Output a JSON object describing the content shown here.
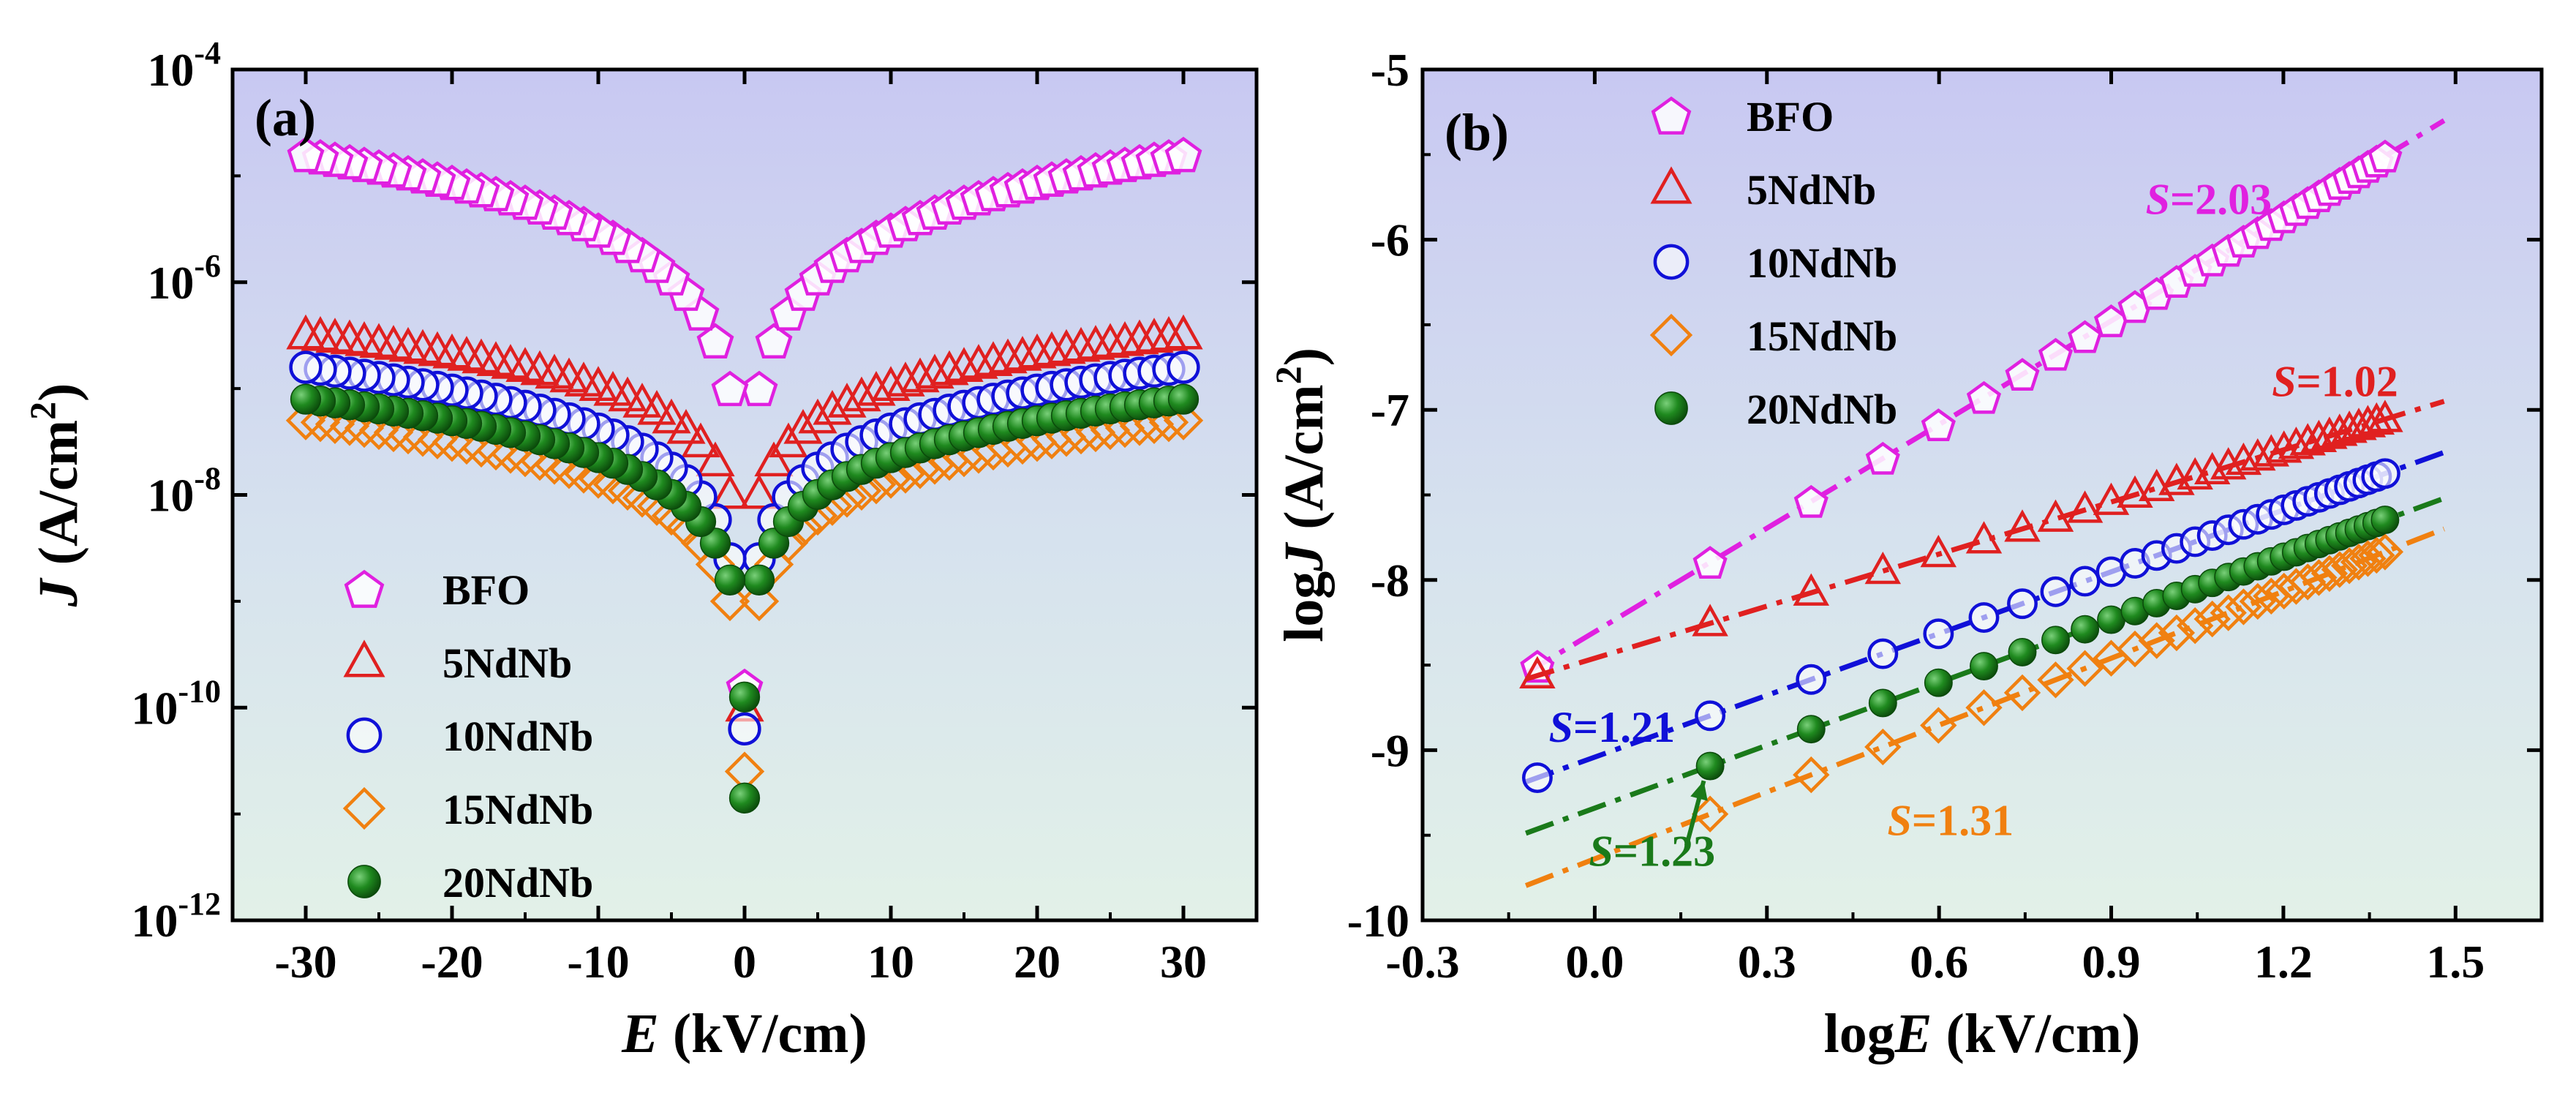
{
  "chart_data": [
    {
      "panel": "(a)",
      "type": "scatter",
      "xlabel_var": "E",
      "xlabel_unit": " (kV/cm)",
      "ylabel_var": "J",
      "ylabel_unit": " (A/cm",
      "ylabel_sup": "2",
      "ylabel_close": ")",
      "xlim": [
        -35,
        35
      ],
      "yscale": "log",
      "ylim_exp": [
        -12,
        -4
      ],
      "xticks": [
        -30,
        -20,
        -10,
        0,
        10,
        20,
        30
      ],
      "xtick_labels": [
        "-30",
        "-20",
        "-10",
        "0",
        "10",
        "20",
        "30"
      ],
      "ytick_exps": [
        -12,
        -10,
        -8,
        -6,
        -4
      ],
      "ytick_base": "10",
      "ytick_sups": [
        "-12",
        "-10",
        "-8",
        "-6",
        "-4"
      ],
      "legend": "lower-left",
      "series": [
        {
          "name": "BFO",
          "color": "#e020e0",
          "marker": "pentagon",
          "logJ_at_30": -4.8,
          "logJ_near_1": -7.0,
          "logJ_at_0": -9.8
        },
        {
          "name": "5NdNb",
          "color": "#e02020",
          "marker": "triangle",
          "logJ_at_30": -6.5,
          "logJ_near_1": -8.0,
          "logJ_at_0": -10.0
        },
        {
          "name": "10NdNb",
          "color": "#1010d8",
          "marker": "circle",
          "logJ_at_30": -6.8,
          "logJ_near_1": -8.6,
          "logJ_at_0": -10.2
        },
        {
          "name": "15NdNb",
          "color": "#f08010",
          "marker": "diamond",
          "logJ_at_30": -7.3,
          "logJ_near_1": -9.0,
          "logJ_at_0": -10.6
        },
        {
          "name": "20NdNb",
          "color": "#1a7a1a",
          "marker": "filled-circle",
          "logJ_at_30": -7.1,
          "logJ_near_1": -8.8,
          "logJ_at_0": -9.9
        }
      ]
    },
    {
      "panel": "(b)",
      "type": "scatter",
      "xlabel_pre": "log",
      "xlabel_var": "E",
      "xlabel_unit": " (kV/cm)",
      "ylabel_pre": "log",
      "ylabel_var": "J",
      "ylabel_unit": " (A/cm",
      "ylabel_sup": "2",
      "ylabel_close": ")",
      "xlim": [
        -0.3,
        1.65
      ],
      "ylim": [
        -10,
        -5
      ],
      "xticks": [
        -0.3,
        0.0,
        0.3,
        0.6,
        0.9,
        1.2,
        1.5
      ],
      "xtick_labels": [
        "-0.3",
        "0.0",
        "0.3",
        "0.6",
        "0.9",
        "1.2",
        "1.5"
      ],
      "yticks": [
        -10,
        -9,
        -8,
        -7,
        -6,
        -5
      ],
      "ytick_labels": [
        "-10",
        "-9",
        "-8",
        "-7",
        "-6",
        "-5"
      ],
      "legend": "top-left",
      "fit_start_x": -0.12,
      "fit_end_x": 1.48,
      "series": [
        {
          "name": "BFO",
          "color": "#e020e0",
          "marker": "pentagon",
          "slope": 2.03,
          "y_end": -5.3,
          "fit_label_S": "S",
          "fit_label": "=2.03",
          "label_x": 0.96,
          "label_y": -5.85
        },
        {
          "name": "5NdNb",
          "color": "#e02020",
          "marker": "triangle",
          "slope": 1.02,
          "y_end": -6.95,
          "fit_label_S": "S",
          "fit_label": "=1.02",
          "label_x": 1.18,
          "label_y": -6.92
        },
        {
          "name": "10NdNb",
          "color": "#1010d8",
          "marker": "circle",
          "slope": 1.21,
          "y_end": -7.25,
          "fit_label_S": "S",
          "fit_label": "=1.21",
          "label_x": -0.08,
          "label_y": -8.95
        },
        {
          "name": "15NdNb",
          "color": "#f08010",
          "marker": "diamond",
          "slope": 1.31,
          "y_end": -7.7,
          "fit_label_S": "S",
          "fit_label": "=1.31",
          "label_x": 0.51,
          "label_y": -9.5
        },
        {
          "name": "20NdNb",
          "color": "#1a7a1a",
          "marker": "filled-circle",
          "slope": 1.23,
          "y_end": -7.52,
          "fit_label_S": "S",
          "fit_label": "=1.23",
          "label_x": -0.01,
          "label_y": -9.68
        }
      ]
    }
  ]
}
